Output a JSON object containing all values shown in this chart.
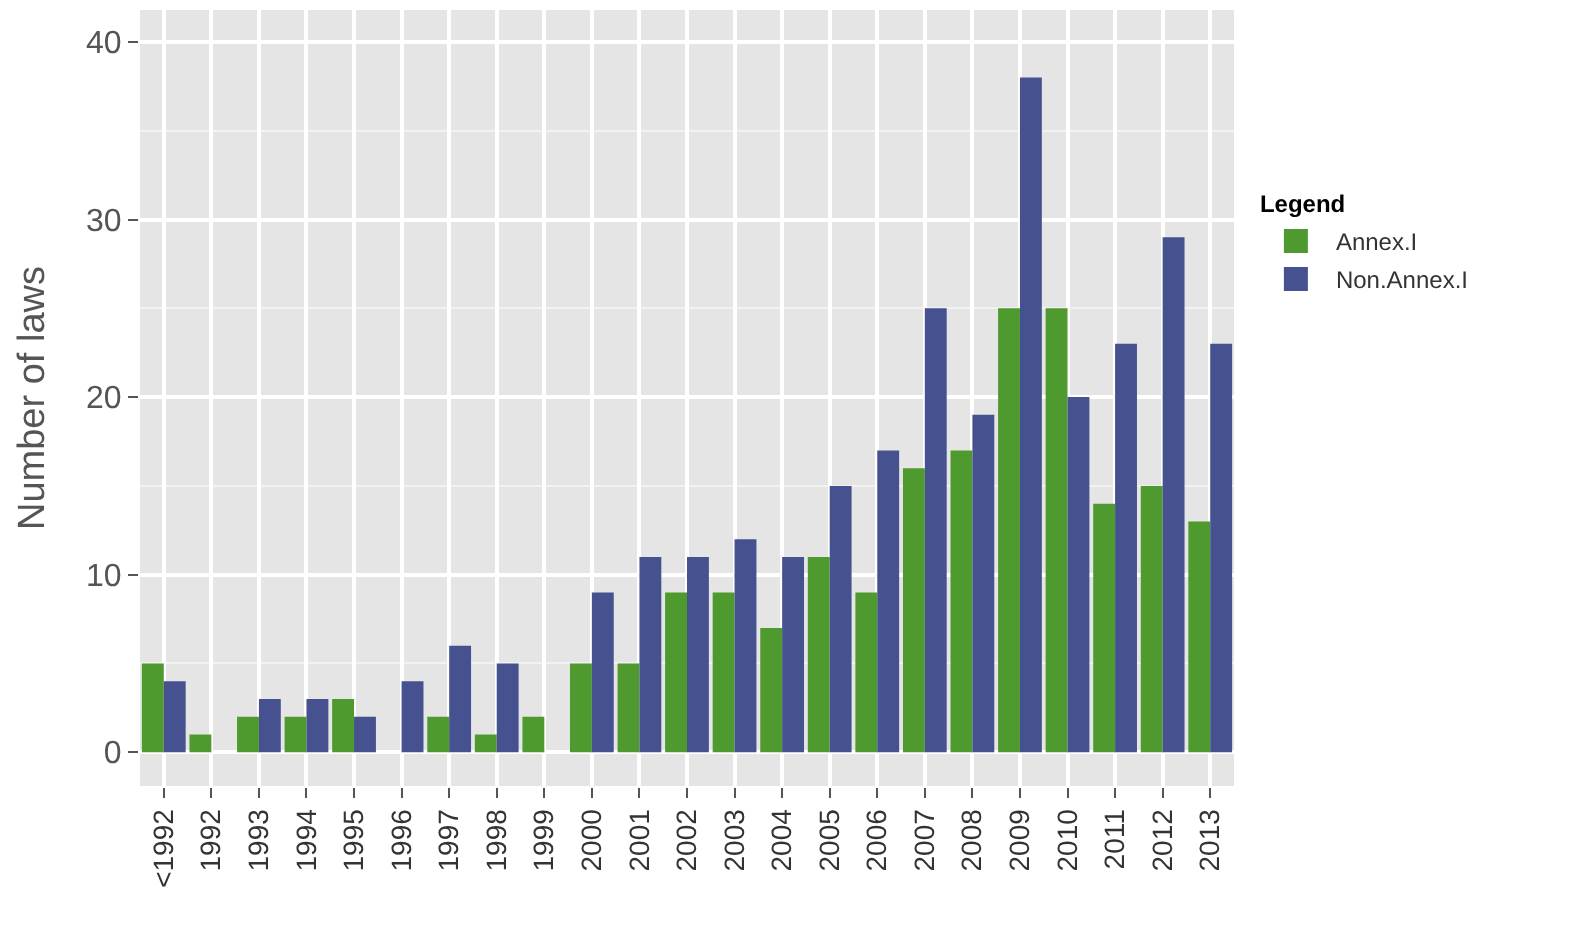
{
  "chart_data": {
    "type": "bar",
    "ylabel": "Number of laws",
    "legend_title": "Legend",
    "legend": "right",
    "grid": true,
    "categories": [
      "<1992",
      "1992",
      "1993",
      "1994",
      "1995",
      "1996",
      "1997",
      "1998",
      "1999",
      "2000",
      "2001",
      "2002",
      "2003",
      "2004",
      "2005",
      "2006",
      "2007",
      "2008",
      "2009",
      "2010",
      "2011",
      "2012",
      "2013"
    ],
    "series": [
      {
        "name": "Annex.I",
        "color": "#4f9a2e",
        "values": [
          5,
          1,
          2,
          2,
          3,
          0,
          2,
          1,
          2,
          5,
          5,
          9,
          9,
          7,
          11,
          9,
          16,
          17,
          25,
          25,
          14,
          15,
          13
        ]
      },
      {
        "name": "Non.Annex.I",
        "color": "#45528f",
        "values": [
          4,
          0,
          3,
          3,
          2,
          4,
          6,
          5,
          0,
          9,
          11,
          11,
          12,
          11,
          15,
          17,
          25,
          19,
          38,
          20,
          23,
          29,
          23
        ]
      }
    ],
    "ylim": [
      -1.9,
      41.8
    ],
    "yticks": [
      0,
      10,
      20,
      30,
      40
    ]
  }
}
